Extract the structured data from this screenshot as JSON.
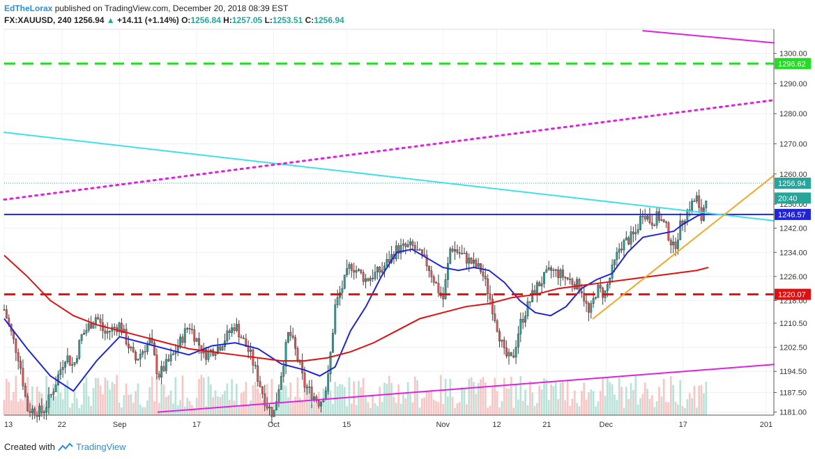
{
  "header": {
    "author": "EdTheLorax",
    "published_text": "published on TradingView.com, December 20, 2018 08:39 EST",
    "symbol": "FX:XAUUSD, 240",
    "last": "1256.94",
    "change_arrow": "▲",
    "change": "+14.11 (+1.14%)",
    "o_label": "O:",
    "o_value": "1256.84",
    "h_label": "H:",
    "h_value": "1257.05",
    "l_label": "L:",
    "l_value": "1253.51",
    "c_label": "C:",
    "c_value": "1256.94"
  },
  "footer": {
    "created_with": "Created with",
    "brand": "TradingView"
  },
  "colors": {
    "up": "#26a69a",
    "down": "#ef5350",
    "ma_fast": "#1f24d6",
    "ma_slow": "#e01010",
    "cyan_trend": "#3fe0ea",
    "magenta": "#e020e0",
    "green_dash": "#22dd22",
    "red_dash": "#e01010",
    "blue_level": "#1f24d6",
    "orange": "#f5a623"
  },
  "chart_data": {
    "type": "candlestick",
    "symbol": "FX:XAUUSD",
    "interval": "240",
    "ylim": [
      1180,
      1308
    ],
    "y_ticks": [
      "1300.00",
      "1290.00",
      "1280.00",
      "1270.00",
      "1260.00",
      "1250.00",
      "1242.00",
      "1234.00",
      "1226.00",
      "1218.00",
      "1210.50",
      "1202.50",
      "1194.50",
      "1187.50",
      "1181.00"
    ],
    "x_ticks": [
      "13",
      "22",
      "Sep",
      "17",
      "Oct",
      "15",
      "Nov",
      "12",
      "21",
      "Dec",
      "17",
      "201"
    ],
    "price_labels": [
      {
        "text": "1296.62",
        "value": 1296.62,
        "color": "#22dd22"
      },
      {
        "text": "1256.94",
        "value": 1256.94,
        "color": "#26a69a"
      },
      {
        "text": "20:40",
        "value": 1252.0,
        "color": "#26a69a"
      },
      {
        "text": "1246.57",
        "value": 1246.57,
        "color": "#1f24d6"
      },
      {
        "text": "1220.07",
        "value": 1220.07,
        "color": "#e01010"
      }
    ],
    "horizontal_levels": [
      {
        "name": "green dashed resistance",
        "value": 1296.62,
        "style": "dashed"
      },
      {
        "name": "blue level",
        "value": 1246.57,
        "style": "solid"
      },
      {
        "name": "red dashed support",
        "value": 1220.07,
        "style": "dashed"
      }
    ],
    "trend_lines": [
      {
        "name": "cyan",
        "from": [
          0,
          1273.8
        ],
        "to": [
          1.0,
          1244.5
        ]
      },
      {
        "name": "magenta dotted",
        "from": [
          0,
          1251.5
        ],
        "to": [
          1.0,
          1284.5
        ]
      },
      {
        "name": "magenta upper",
        "from": [
          0.83,
          1307.5
        ],
        "to": [
          1.0,
          1303.5
        ]
      },
      {
        "name": "magenta lower",
        "from": [
          0.2,
          1181
        ],
        "to": [
          1.0,
          1196.8
        ]
      },
      {
        "name": "orange",
        "from": [
          0.765,
          1212
        ],
        "to": [
          1.0,
          1259.5
        ]
      }
    ],
    "close_path": [
      [
        0,
        1215
      ],
      [
        0.02,
        1198
      ],
      [
        0.03,
        1182
      ],
      [
        0.05,
        1181
      ],
      [
        0.06,
        1186
      ],
      [
        0.08,
        1200
      ],
      [
        0.09,
        1196
      ],
      [
        0.1,
        1206
      ],
      [
        0.12,
        1213
      ],
      [
        0.13,
        1207
      ],
      [
        0.15,
        1210
      ],
      [
        0.17,
        1198
      ],
      [
        0.19,
        1205
      ],
      [
        0.2,
        1193
      ],
      [
        0.22,
        1200
      ],
      [
        0.24,
        1210
      ],
      [
        0.26,
        1200
      ],
      [
        0.28,
        1203
      ],
      [
        0.3,
        1210
      ],
      [
        0.32,
        1200
      ],
      [
        0.34,
        1184
      ],
      [
        0.35,
        1180
      ],
      [
        0.37,
        1208
      ],
      [
        0.38,
        1200
      ],
      [
        0.39,
        1190
      ],
      [
        0.41,
        1184
      ],
      [
        0.42,
        1190
      ],
      [
        0.43,
        1216
      ],
      [
        0.45,
        1230
      ],
      [
        0.47,
        1225
      ],
      [
        0.49,
        1228
      ],
      [
        0.51,
        1235
      ],
      [
        0.53,
        1236
      ],
      [
        0.55,
        1230
      ],
      [
        0.57,
        1218
      ],
      [
        0.58,
        1236
      ],
      [
        0.6,
        1232
      ],
      [
        0.62,
        1228
      ],
      [
        0.63,
        1220
      ],
      [
        0.64,
        1210
      ],
      [
        0.65,
        1200
      ],
      [
        0.66,
        1198
      ],
      [
        0.67,
        1210
      ],
      [
        0.69,
        1222
      ],
      [
        0.71,
        1228
      ],
      [
        0.72,
        1227
      ],
      [
        0.74,
        1224
      ],
      [
        0.75,
        1222
      ],
      [
        0.76,
        1213
      ],
      [
        0.77,
        1222
      ],
      [
        0.78,
        1220
      ],
      [
        0.79,
        1228
      ],
      [
        0.8,
        1236
      ],
      [
        0.81,
        1238
      ],
      [
        0.82,
        1240
      ],
      [
        0.83,
        1248
      ],
      [
        0.84,
        1244
      ],
      [
        0.85,
        1246
      ],
      [
        0.86,
        1242
      ],
      [
        0.87,
        1235
      ],
      [
        0.88,
        1244
      ],
      [
        0.89,
        1249
      ],
      [
        0.9,
        1252
      ],
      [
        0.905,
        1244
      ],
      [
        0.915,
        1257
      ]
    ],
    "ma_fast_path": [
      [
        0,
        1212
      ],
      [
        0.03,
        1202
      ],
      [
        0.06,
        1193
      ],
      [
        0.09,
        1188
      ],
      [
        0.12,
        1198
      ],
      [
        0.15,
        1206
      ],
      [
        0.18,
        1204
      ],
      [
        0.21,
        1202
      ],
      [
        0.24,
        1200
      ],
      [
        0.27,
        1203
      ],
      [
        0.3,
        1204
      ],
      [
        0.33,
        1202
      ],
      [
        0.36,
        1197
      ],
      [
        0.39,
        1195
      ],
      [
        0.41,
        1193
      ],
      [
        0.43,
        1196
      ],
      [
        0.45,
        1208
      ],
      [
        0.47,
        1216
      ],
      [
        0.49,
        1226
      ],
      [
        0.51,
        1234
      ],
      [
        0.53,
        1235
      ],
      [
        0.55,
        1232
      ],
      [
        0.57,
        1229
      ],
      [
        0.59,
        1228
      ],
      [
        0.61,
        1229
      ],
      [
        0.63,
        1228
      ],
      [
        0.65,
        1224
      ],
      [
        0.67,
        1218
      ],
      [
        0.69,
        1214
      ],
      [
        0.71,
        1213
      ],
      [
        0.73,
        1216
      ],
      [
        0.75,
        1222
      ],
      [
        0.77,
        1225
      ],
      [
        0.79,
        1227
      ],
      [
        0.81,
        1234
      ],
      [
        0.83,
        1239
      ],
      [
        0.85,
        1240
      ],
      [
        0.87,
        1241
      ],
      [
        0.88,
        1243
      ],
      [
        0.9,
        1246
      ],
      [
        0.91,
        1247
      ]
    ],
    "ma_slow_path": [
      [
        0,
        1233
      ],
      [
        0.03,
        1226
      ],
      [
        0.06,
        1218
      ],
      [
        0.09,
        1213
      ],
      [
        0.12,
        1210
      ],
      [
        0.15,
        1208
      ],
      [
        0.18,
        1206
      ],
      [
        0.21,
        1204
      ],
      [
        0.24,
        1202
      ],
      [
        0.27,
        1201
      ],
      [
        0.3,
        1200
      ],
      [
        0.33,
        1199
      ],
      [
        0.36,
        1198
      ],
      [
        0.39,
        1198
      ],
      [
        0.42,
        1199
      ],
      [
        0.45,
        1201
      ],
      [
        0.48,
        1204
      ],
      [
        0.51,
        1208
      ],
      [
        0.54,
        1212
      ],
      [
        0.57,
        1214
      ],
      [
        0.6,
        1216
      ],
      [
        0.63,
        1217
      ],
      [
        0.66,
        1219
      ],
      [
        0.69,
        1220
      ],
      [
        0.72,
        1222
      ],
      [
        0.75,
        1223
      ],
      [
        0.78,
        1224
      ],
      [
        0.81,
        1225
      ],
      [
        0.84,
        1226
      ],
      [
        0.87,
        1227
      ],
      [
        0.9,
        1228
      ],
      [
        0.915,
        1229
      ]
    ]
  }
}
